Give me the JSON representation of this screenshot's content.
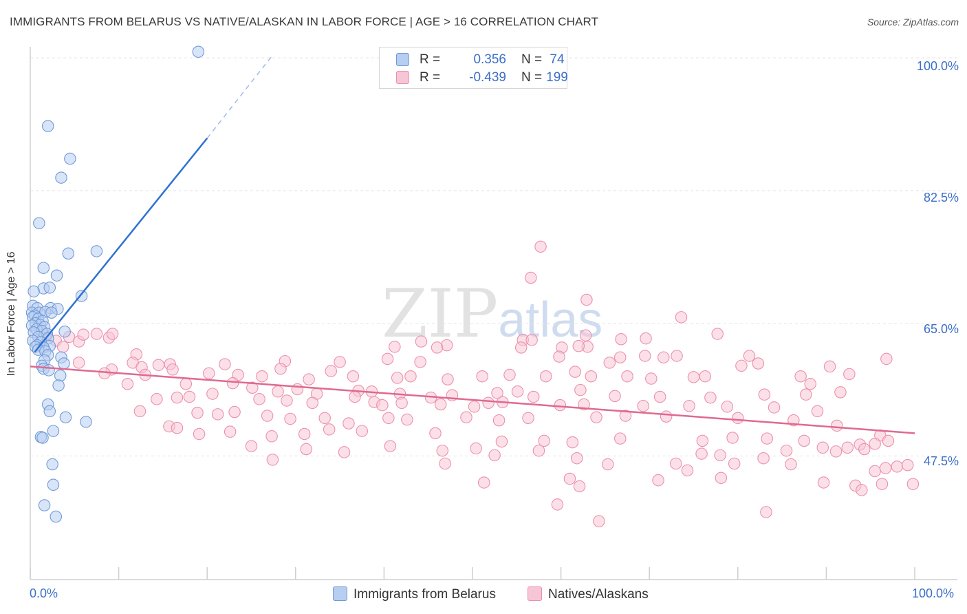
{
  "title": "IMMIGRANTS FROM BELARUS VS NATIVE/ALASKAN IN LABOR FORCE | AGE > 16 CORRELATION CHART",
  "source": "Source: ZipAtlas.com",
  "watermark": {
    "zip": "ZIP",
    "atlas": "atlas"
  },
  "legend_top": [
    {
      "r_label": "R =",
      "r_value": "0.356",
      "n_label": "N =",
      "n_value": "74"
    },
    {
      "r_label": "R =",
      "r_value": "-0.439",
      "n_label": "N =",
      "n_value": "199"
    }
  ],
  "legend_bottom": [
    "Immigrants from Belarus",
    "Natives/Alaskans"
  ],
  "colors": {
    "blue_fill": "#b8cef0",
    "blue_stroke": "#6f9ad8",
    "blue_line": "#2e72d2",
    "pink_fill": "#f7c6d6",
    "pink_stroke": "#ec8fae",
    "pink_line": "#e0698f",
    "tick_text": "#3b6fc9",
    "grid": "#e4e4e4"
  },
  "chart_data": {
    "type": "scatter",
    "title": "IMMIGRANTS FROM BELARUS VS NATIVE/ALASKAN IN LABOR FORCE | AGE > 16 CORRELATION CHART",
    "xlabel": "",
    "ylabel": "In Labor Force | Age > 16",
    "x_tick_labels": [
      "0.0%",
      "100.0%"
    ],
    "y_tick_labels": [
      "100.0%",
      "82.5%",
      "65.0%",
      "47.5%"
    ],
    "y_ticks": [
      100.0,
      82.5,
      65.0,
      47.5
    ],
    "xlim": [
      0,
      100
    ],
    "ylim": [
      31.2,
      102.0
    ],
    "grid": true,
    "legend_position": "top-center",
    "series": [
      {
        "name": "Immigrants from Belarus",
        "r": 0.356,
        "n": 74,
        "trend": {
          "x0": 0.5,
          "y0": 61.2,
          "x1": 20.0,
          "y1": 89.4,
          "dash_to_x": 27.5,
          "dash_to_y": 100.5
        },
        "points": [
          [
            19.0,
            100.8
          ],
          [
            2.0,
            91.0
          ],
          [
            4.5,
            86.7
          ],
          [
            3.5,
            84.2
          ],
          [
            1.0,
            78.2
          ],
          [
            7.5,
            74.5
          ],
          [
            4.3,
            74.2
          ],
          [
            1.5,
            72.3
          ],
          [
            3.0,
            71.3
          ],
          [
            1.5,
            69.6
          ],
          [
            2.2,
            69.7
          ],
          [
            0.4,
            69.2
          ],
          [
            5.8,
            68.6
          ],
          [
            0.3,
            67.3
          ],
          [
            0.8,
            67.0
          ],
          [
            2.3,
            67.0
          ],
          [
            3.1,
            66.9
          ],
          [
            0.2,
            66.4
          ],
          [
            1.0,
            66.4
          ],
          [
            0.5,
            66.0
          ],
          [
            1.7,
            66.5
          ],
          [
            2.4,
            66.4
          ],
          [
            0.3,
            65.8
          ],
          [
            0.9,
            65.6
          ],
          [
            1.4,
            65.3
          ],
          [
            0.6,
            65.0
          ],
          [
            1.1,
            64.8
          ],
          [
            0.2,
            64.7
          ],
          [
            1.6,
            64.5
          ],
          [
            0.7,
            64.2
          ],
          [
            1.3,
            64.0
          ],
          [
            0.4,
            63.8
          ],
          [
            1.9,
            63.6
          ],
          [
            3.9,
            63.9
          ],
          [
            0.9,
            63.2
          ],
          [
            2.0,
            63.0
          ],
          [
            0.3,
            62.7
          ],
          [
            1.2,
            62.5
          ],
          [
            0.8,
            62.1
          ],
          [
            2.2,
            62.0
          ],
          [
            0.6,
            61.9
          ],
          [
            1.5,
            61.8
          ],
          [
            0.9,
            61.5
          ],
          [
            1.7,
            61.3
          ],
          [
            2.0,
            60.8
          ],
          [
            3.5,
            60.5
          ],
          [
            1.6,
            60.1
          ],
          [
            3.8,
            59.7
          ],
          [
            1.3,
            59.4
          ],
          [
            1.5,
            59.0
          ],
          [
            2.1,
            58.8
          ],
          [
            3.4,
            58.1
          ],
          [
            3.2,
            56.8
          ],
          [
            2.0,
            54.3
          ],
          [
            2.2,
            53.4
          ],
          [
            4.0,
            52.6
          ],
          [
            6.3,
            52.0
          ],
          [
            2.6,
            50.8
          ],
          [
            1.2,
            50.0
          ],
          [
            1.4,
            49.9
          ],
          [
            2.5,
            46.4
          ],
          [
            2.6,
            43.7
          ],
          [
            1.6,
            41.0
          ],
          [
            2.9,
            39.5
          ]
        ]
      },
      {
        "name": "Natives/Alaskans",
        "r": -0.439,
        "n": 199,
        "trend": {
          "x0": 0.0,
          "y0": 59.3,
          "x1": 100.0,
          "y1": 50.5
        },
        "points": [
          [
            57.7,
            75.1
          ],
          [
            56.6,
            71.0
          ],
          [
            62.9,
            68.1
          ],
          [
            73.6,
            65.8
          ],
          [
            77.7,
            63.6
          ],
          [
            62.8,
            63.4
          ],
          [
            66.8,
            62.9
          ],
          [
            69.6,
            63.0
          ],
          [
            55.7,
            62.8
          ],
          [
            56.7,
            62.8
          ],
          [
            55.5,
            61.8
          ],
          [
            44.2,
            62.6
          ],
          [
            41.2,
            61.9
          ],
          [
            47.1,
            62.1
          ],
          [
            46.0,
            61.8
          ],
          [
            63.0,
            61.9
          ],
          [
            62.0,
            62.0
          ],
          [
            60.1,
            61.8
          ],
          [
            1.7,
            63.4
          ],
          [
            2.9,
            62.7
          ],
          [
            4.4,
            63.2
          ],
          [
            5.5,
            62.6
          ],
          [
            6.0,
            63.5
          ],
          [
            7.5,
            63.6
          ],
          [
            8.9,
            63.1
          ],
          [
            9.3,
            63.6
          ],
          [
            3.7,
            61.9
          ],
          [
            12.0,
            60.9
          ],
          [
            11.6,
            59.8
          ],
          [
            5.5,
            59.8
          ],
          [
            15.8,
            59.6
          ],
          [
            22.0,
            59.6
          ],
          [
            28.8,
            60.0
          ],
          [
            35.0,
            59.9
          ],
          [
            40.4,
            60.3
          ],
          [
            44.1,
            59.9
          ],
          [
            59.8,
            60.6
          ],
          [
            65.5,
            59.8
          ],
          [
            66.7,
            60.5
          ],
          [
            69.5,
            60.7
          ],
          [
            71.6,
            60.5
          ],
          [
            73.1,
            60.7
          ],
          [
            81.3,
            60.7
          ],
          [
            82.3,
            59.7
          ],
          [
            90.4,
            59.3
          ],
          [
            96.8,
            60.3
          ],
          [
            9.2,
            58.9
          ],
          [
            8.4,
            58.4
          ],
          [
            12.6,
            59.2
          ],
          [
            13.0,
            58.2
          ],
          [
            14.5,
            59.5
          ],
          [
            16.1,
            58.9
          ],
          [
            20.2,
            58.4
          ],
          [
            23.5,
            58.2
          ],
          [
            26.2,
            58.0
          ],
          [
            28.3,
            59.0
          ],
          [
            31.5,
            57.6
          ],
          [
            34.0,
            58.7
          ],
          [
            36.5,
            58.0
          ],
          [
            41.5,
            57.8
          ],
          [
            43.0,
            58.0
          ],
          [
            47.2,
            57.6
          ],
          [
            51.1,
            58.0
          ],
          [
            54.2,
            58.2
          ],
          [
            58.3,
            58.0
          ],
          [
            61.6,
            58.6
          ],
          [
            63.4,
            58.0
          ],
          [
            67.5,
            58.0
          ],
          [
            70.2,
            57.7
          ],
          [
            75.0,
            57.9
          ],
          [
            76.3,
            58.0
          ],
          [
            80.4,
            59.4
          ],
          [
            87.1,
            58.0
          ],
          [
            88.2,
            57.0
          ],
          [
            92.6,
            58.3
          ],
          [
            11.0,
            57.0
          ],
          [
            17.6,
            57.0
          ],
          [
            22.9,
            57.1
          ],
          [
            25.1,
            56.5
          ],
          [
            28.0,
            56.0
          ],
          [
            30.2,
            56.3
          ],
          [
            32.4,
            55.7
          ],
          [
            37.1,
            56.1
          ],
          [
            38.6,
            56.0
          ],
          [
            41.8,
            55.7
          ],
          [
            45.3,
            55.2
          ],
          [
            47.7,
            55.5
          ],
          [
            52.8,
            55.8
          ],
          [
            55.1,
            56.0
          ],
          [
            56.9,
            55.3
          ],
          [
            62.2,
            56.2
          ],
          [
            66.1,
            55.4
          ],
          [
            71.2,
            55.3
          ],
          [
            76.9,
            55.2
          ],
          [
            83.0,
            55.6
          ],
          [
            87.7,
            55.6
          ],
          [
            91.6,
            55.9
          ],
          [
            14.3,
            55.0
          ],
          [
            16.6,
            55.2
          ],
          [
            18.0,
            55.3
          ],
          [
            20.6,
            55.7
          ],
          [
            25.9,
            55.0
          ],
          [
            29.0,
            54.8
          ],
          [
            31.9,
            54.5
          ],
          [
            36.7,
            55.3
          ],
          [
            38.9,
            54.6
          ],
          [
            39.8,
            54.2
          ],
          [
            42.0,
            54.5
          ],
          [
            46.4,
            54.3
          ],
          [
            50.2,
            54.0
          ],
          [
            51.8,
            54.5
          ],
          [
            53.4,
            54.6
          ],
          [
            59.9,
            54.2
          ],
          [
            62.6,
            54.3
          ],
          [
            69.3,
            54.1
          ],
          [
            74.5,
            54.1
          ],
          [
            78.8,
            54.0
          ],
          [
            84.1,
            53.9
          ],
          [
            89.0,
            53.4
          ],
          [
            12.4,
            53.4
          ],
          [
            18.9,
            53.2
          ],
          [
            21.2,
            53.0
          ],
          [
            23.1,
            53.3
          ],
          [
            26.8,
            52.8
          ],
          [
            29.4,
            52.4
          ],
          [
            33.3,
            52.5
          ],
          [
            36.0,
            51.8
          ],
          [
            40.5,
            52.5
          ],
          [
            42.6,
            52.3
          ],
          [
            49.3,
            52.6
          ],
          [
            53.0,
            52.2
          ],
          [
            56.3,
            52.5
          ],
          [
            64.0,
            52.6
          ],
          [
            67.3,
            52.8
          ],
          [
            71.9,
            52.7
          ],
          [
            80.0,
            52.5
          ],
          [
            86.3,
            52.2
          ],
          [
            91.2,
            51.5
          ],
          [
            15.7,
            51.4
          ],
          [
            16.6,
            51.2
          ],
          [
            19.1,
            50.4
          ],
          [
            22.6,
            50.7
          ],
          [
            27.3,
            50.1
          ],
          [
            31.0,
            50.4
          ],
          [
            33.8,
            51.0
          ],
          [
            37.5,
            50.8
          ],
          [
            45.8,
            50.5
          ],
          [
            53.3,
            49.4
          ],
          [
            58.1,
            49.5
          ],
          [
            61.3,
            49.3
          ],
          [
            66.7,
            49.8
          ],
          [
            76.0,
            49.5
          ],
          [
            79.4,
            49.9
          ],
          [
            83.3,
            49.8
          ],
          [
            87.5,
            49.5
          ],
          [
            89.6,
            48.6
          ],
          [
            96.1,
            50.2
          ],
          [
            97.0,
            49.5
          ],
          [
            25.0,
            48.8
          ],
          [
            31.2,
            48.4
          ],
          [
            35.5,
            48.0
          ],
          [
            40.7,
            48.8
          ],
          [
            46.6,
            48.2
          ],
          [
            50.4,
            48.5
          ],
          [
            52.5,
            47.6
          ],
          [
            57.5,
            48.2
          ],
          [
            61.8,
            47.2
          ],
          [
            75.9,
            47.8
          ],
          [
            78.0,
            47.6
          ],
          [
            82.9,
            47.2
          ],
          [
            85.5,
            48.2
          ],
          [
            91.1,
            48.1
          ],
          [
            92.4,
            48.6
          ],
          [
            93.8,
            49.0
          ],
          [
            94.3,
            48.4
          ],
          [
            95.5,
            49.1
          ],
          [
            27.4,
            47.0
          ],
          [
            46.9,
            46.5
          ],
          [
            65.3,
            46.4
          ],
          [
            73.0,
            46.5
          ],
          [
            74.3,
            45.6
          ],
          [
            79.6,
            46.5
          ],
          [
            86.0,
            46.4
          ],
          [
            95.5,
            45.5
          ],
          [
            96.7,
            45.9
          ],
          [
            98.0,
            46.1
          ],
          [
            99.2,
            46.3
          ],
          [
            51.3,
            44.0
          ],
          [
            61.0,
            44.5
          ],
          [
            71.0,
            44.3
          ],
          [
            78.1,
            44.6
          ],
          [
            89.7,
            44.0
          ],
          [
            93.3,
            43.6
          ],
          [
            94.0,
            43.0
          ],
          [
            96.3,
            43.8
          ],
          [
            99.8,
            43.8
          ],
          [
            59.6,
            41.1
          ],
          [
            62.1,
            43.5
          ],
          [
            83.2,
            40.1
          ],
          [
            64.3,
            38.9
          ]
        ]
      }
    ]
  }
}
